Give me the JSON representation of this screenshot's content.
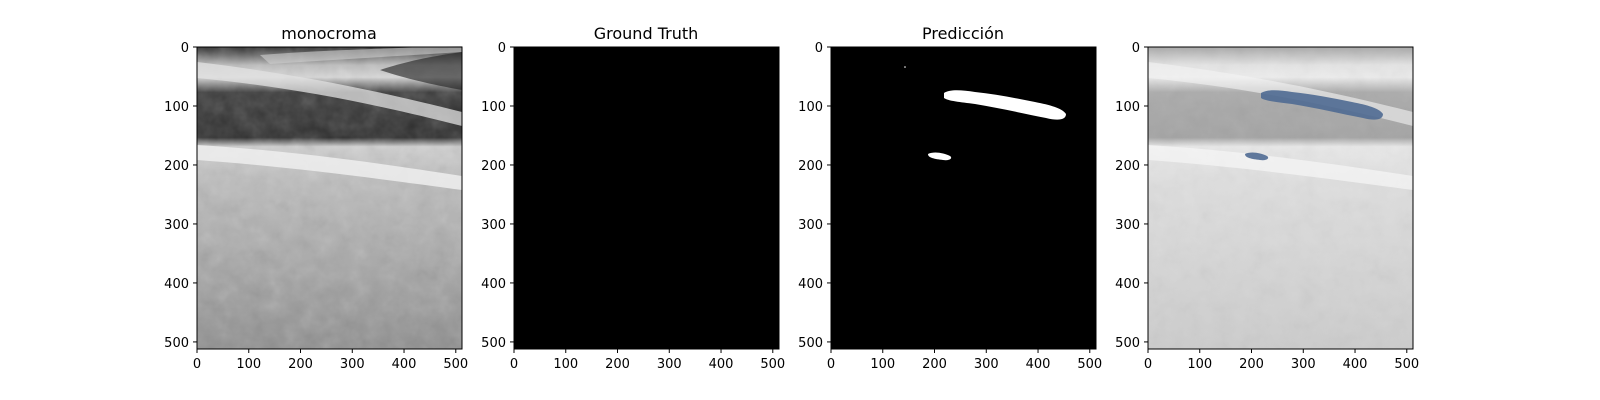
{
  "panels": [
    {
      "title": "monocroma",
      "kind": "image",
      "xticks": [
        "0",
        "100",
        "200",
        "300",
        "400",
        "500"
      ],
      "yticks": [
        "0",
        "100",
        "200",
        "300",
        "400",
        "500"
      ]
    },
    {
      "title": "Ground Truth",
      "kind": "mask-empty",
      "xticks": [
        "0",
        "100",
        "200",
        "300",
        "400",
        "500"
      ],
      "yticks": [
        "0",
        "100",
        "200",
        "300",
        "400",
        "500"
      ]
    },
    {
      "title": "Predicción",
      "kind": "mask-prediction",
      "xticks": [
        "0",
        "100",
        "200",
        "300",
        "400",
        "500"
      ],
      "yticks": [
        "0",
        "100",
        "200",
        "300",
        "400",
        "500"
      ]
    },
    {
      "title": "",
      "kind": "overlay",
      "xticks": [
        "0",
        "100",
        "200",
        "300",
        "400",
        "500"
      ],
      "yticks": [
        "0",
        "100",
        "200",
        "300",
        "400",
        "500"
      ]
    }
  ],
  "colors": {
    "mask_background": "#000000",
    "mask_foreground": "#ffffff",
    "overlay_region": "#4f6a92"
  }
}
